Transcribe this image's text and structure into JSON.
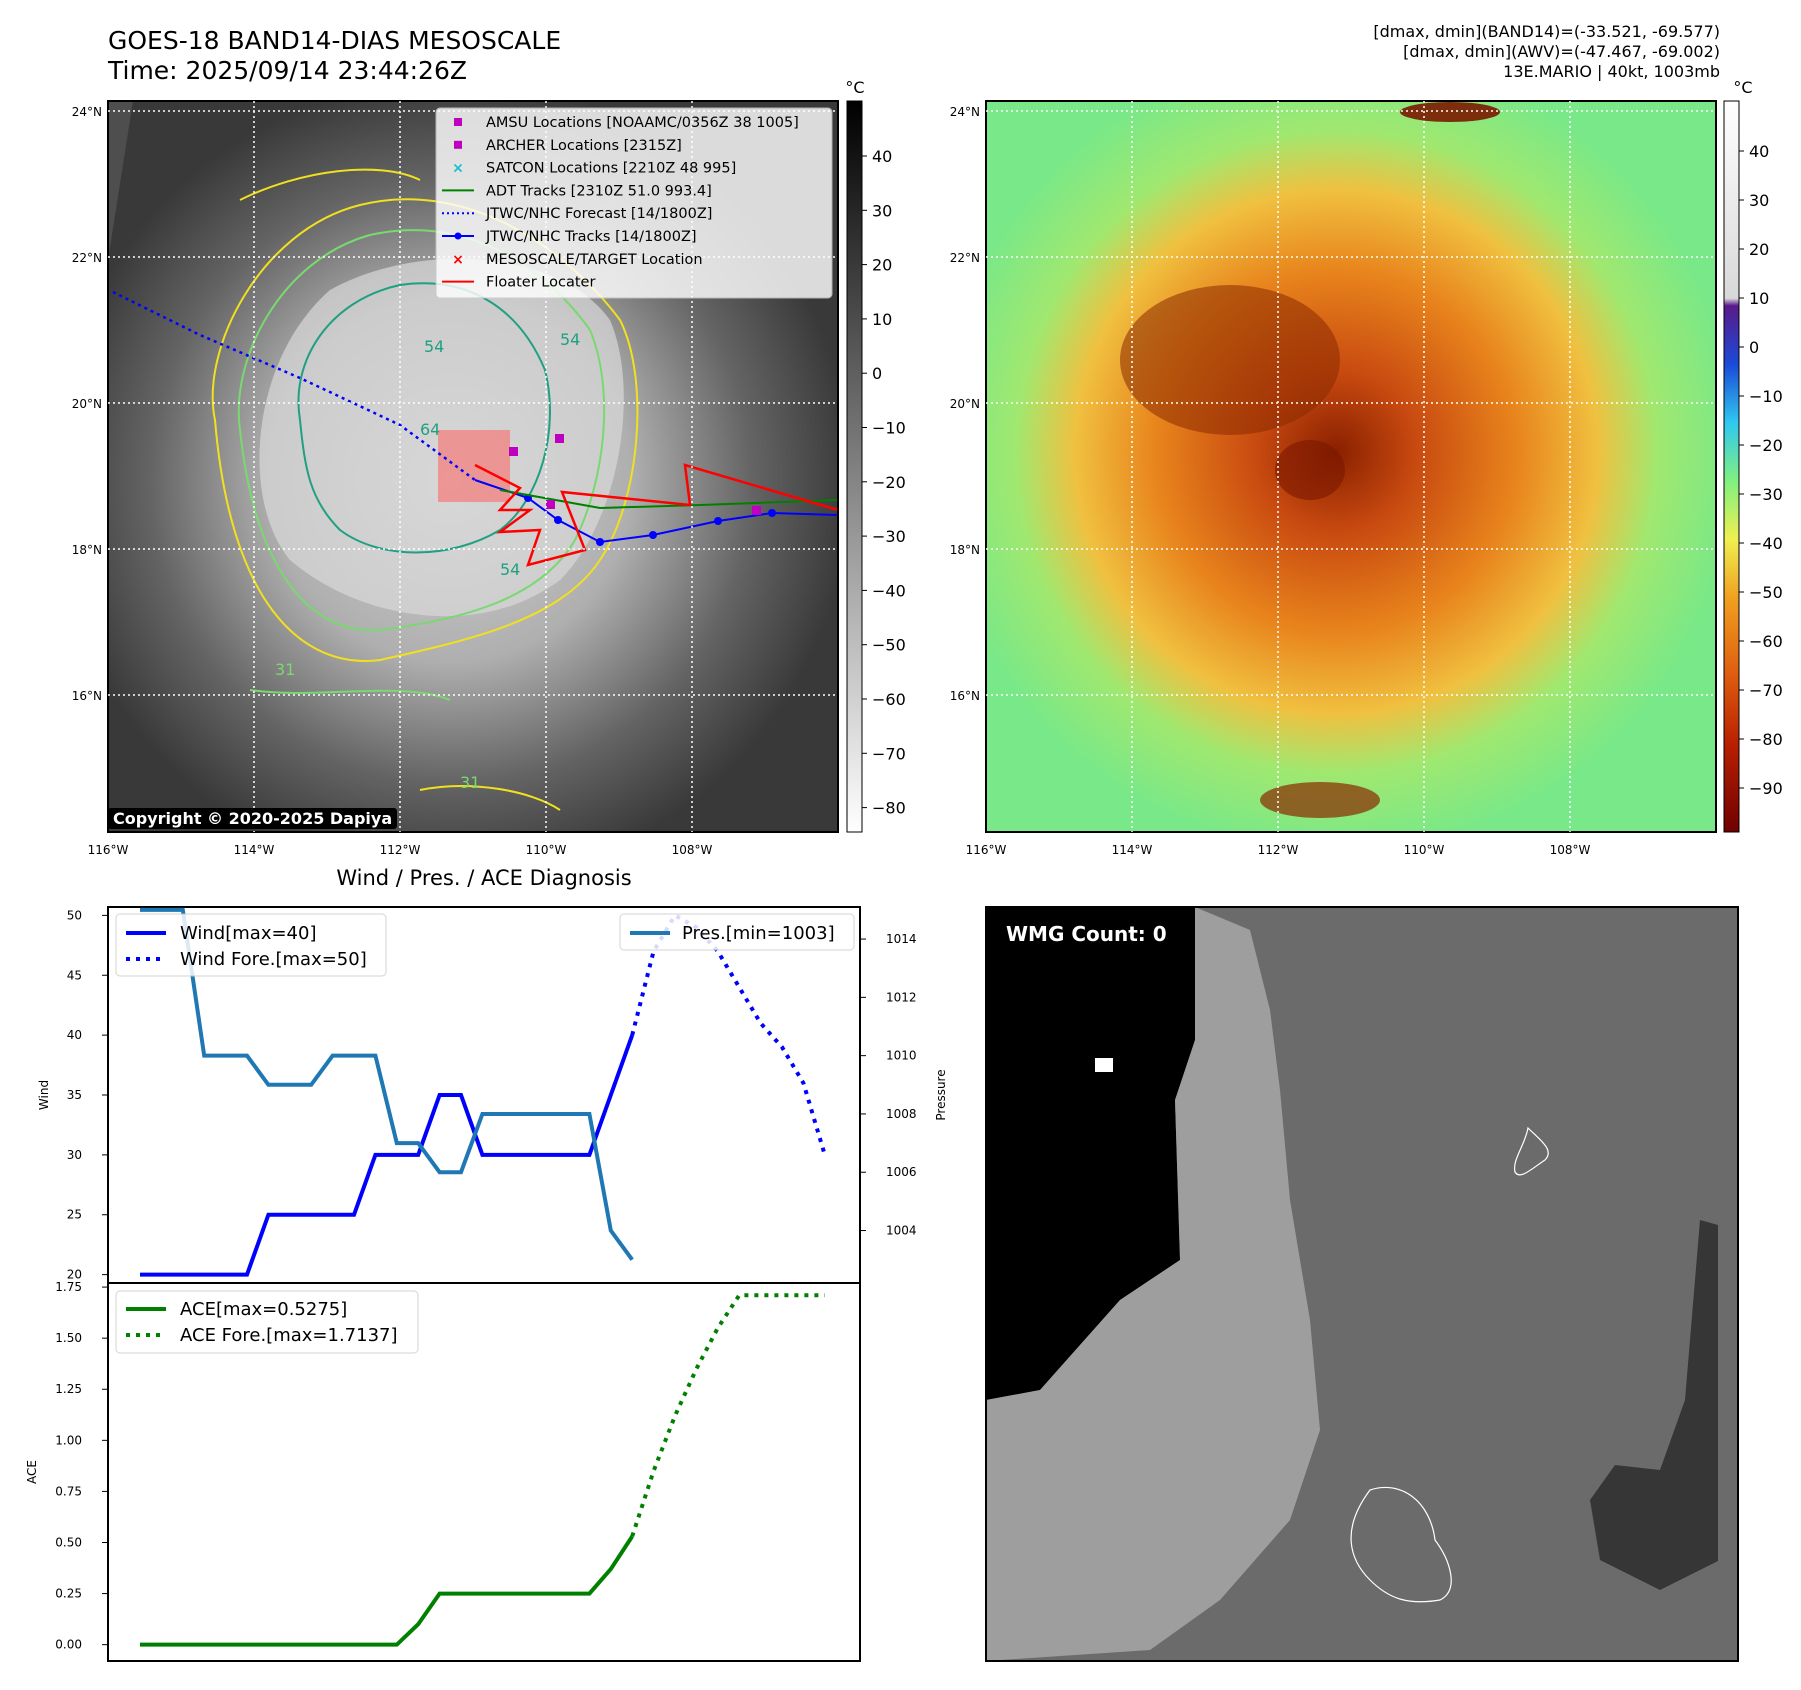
{
  "header": {
    "title_line1": "GOES-18 BAND14-DIAS MESOSCALE",
    "title_line2": "Time: 2025/09/14 23:44:26Z",
    "right_line1": "[dmax, dmin](BAND14)=(-33.521, -69.577)",
    "right_line2": "[dmax, dmin](AWV)=(-47.467, -69.002)",
    "right_line3": "13E.MARIO | 40kt, 1003mb"
  },
  "map": {
    "lat_labels": [
      "24°N",
      "22°N",
      "20°N",
      "18°N",
      "16°N"
    ],
    "lon_labels": [
      "116°W",
      "114°W",
      "112°W",
      "110°W",
      "108°W"
    ],
    "copyright": "Copyright © 2020-2025 Dapiya",
    "colorbar_unit": "°C",
    "ir_colorbar_ticks": [
      "40",
      "30",
      "20",
      "10",
      "0",
      "−10",
      "−20",
      "−30",
      "−40",
      "−50",
      "−60",
      "−70",
      "−80"
    ],
    "enh_colorbar_ticks": [
      "40",
      "30",
      "20",
      "10",
      "0",
      "−10",
      "−20",
      "−30",
      "−40",
      "−50",
      "−60",
      "−70",
      "−80",
      "−90"
    ],
    "contour_labels": [
      "54",
      "64",
      "54",
      "31",
      "54",
      "31"
    ],
    "legend": [
      {
        "label": "AMSU Locations [NOAAMC/0356Z 38 1005]",
        "color": "#bf00bf"
      },
      {
        "label": "ARCHER Locations [2315Z]",
        "color": "#bf00bf"
      },
      {
        "label": "SATCON Locations [2210Z 48 995]",
        "color": "#17becf"
      },
      {
        "label": "ADT Tracks [2310Z 51.0 993.4]",
        "color": "#008000"
      },
      {
        "label": "JTWC/NHC Forecast [14/1800Z]",
        "color": "#0000ff"
      },
      {
        "label": "JTWC/NHC Tracks [14/1800Z]",
        "color": "#0000ff"
      },
      {
        "label": "MESOSCALE/TARGET Location",
        "color": "#ff0000"
      },
      {
        "label": "Floater Locater",
        "color": "#ff0000"
      }
    ]
  },
  "chart_data": [
    {
      "type": "line",
      "title": "Wind / Pres. / ACE Diagnosis",
      "ylabel": "Wind",
      "ylabel_right": "Pressure",
      "ylim": [
        19.3,
        50.7
      ],
      "ylim_right": [
        1002.2,
        1015.1
      ],
      "yticks": [
        20,
        25,
        30,
        35,
        40,
        45,
        50
      ],
      "yticks_right": [
        1004,
        1006,
        1008,
        1010,
        1012,
        1014
      ],
      "legend_wind": [
        "Wind[max=40]",
        "Wind Fore.[max=50]"
      ],
      "legend_pres": [
        "Pres.[min=1003]"
      ],
      "series": [
        {
          "name": "Wind[max=40]",
          "color": "#0000ff",
          "style": "solid",
          "x": [
            0,
            1,
            2,
            3,
            4,
            5,
            6,
            7,
            8,
            9,
            10,
            11,
            12,
            13,
            14,
            15,
            16,
            17,
            18,
            19,
            20,
            21,
            22,
            23
          ],
          "values": [
            20,
            20,
            20,
            20,
            20,
            20,
            25,
            25,
            25,
            25,
            25,
            30,
            30,
            30,
            35,
            35,
            30,
            30,
            30,
            30,
            30,
            30,
            35,
            40
          ]
        },
        {
          "name": "Wind Fore.[max=50]",
          "color": "#0000ff",
          "style": "dotted",
          "x": [
            23,
            24,
            25,
            26,
            27,
            28,
            29,
            30,
            31,
            32
          ],
          "values": [
            40,
            47,
            50,
            49,
            47,
            44,
            41,
            39,
            36,
            30
          ]
        },
        {
          "name": "Pres.[min=1003]",
          "color": "#1f77b4",
          "style": "solid",
          "axis": "right",
          "x": [
            0,
            1,
            2,
            3,
            4,
            5,
            6,
            7,
            8,
            9,
            10,
            11,
            12,
            13,
            14,
            15,
            16,
            17,
            18,
            19,
            20,
            21,
            22,
            23
          ],
          "values": [
            1015,
            1015,
            1015,
            1010,
            1010,
            1010,
            1009,
            1009,
            1009,
            1010,
            1010,
            1010,
            1007,
            1007,
            1006,
            1006,
            1008,
            1008,
            1008,
            1008,
            1008,
            1008,
            1004,
            1003
          ]
        }
      ]
    },
    {
      "type": "line",
      "ylabel": "ACE",
      "ylim": [
        -0.08,
        1.77
      ],
      "yticks": [
        "0.00",
        "0.25",
        "0.50",
        "0.75",
        "1.00",
        "1.25",
        "1.50",
        "1.75"
      ],
      "legend": [
        "ACE[max=0.5275]",
        "ACE Fore.[max=1.7137]"
      ],
      "series": [
        {
          "name": "ACE[max=0.5275]",
          "color": "#008000",
          "style": "solid",
          "x": [
            0,
            1,
            2,
            3,
            4,
            5,
            6,
            7,
            8,
            9,
            10,
            11,
            12,
            13,
            14,
            15,
            16,
            17,
            18,
            19,
            20,
            21,
            22,
            23
          ],
          "values": [
            0,
            0,
            0,
            0,
            0,
            0,
            0,
            0,
            0,
            0,
            0,
            0,
            0,
            0.1,
            0.25,
            0.25,
            0.25,
            0.25,
            0.25,
            0.25,
            0.25,
            0.25,
            0.37,
            0.53
          ]
        },
        {
          "name": "ACE Fore.[max=1.7137]",
          "color": "#008000",
          "style": "dotted",
          "x": [
            23,
            24,
            25,
            26,
            27,
            28,
            29,
            30,
            31,
            32
          ],
          "values": [
            0.53,
            0.85,
            1.12,
            1.35,
            1.55,
            1.71,
            1.71,
            1.71,
            1.71,
            1.71
          ]
        }
      ]
    }
  ],
  "wmg": {
    "label": "WMG Count: 0"
  }
}
